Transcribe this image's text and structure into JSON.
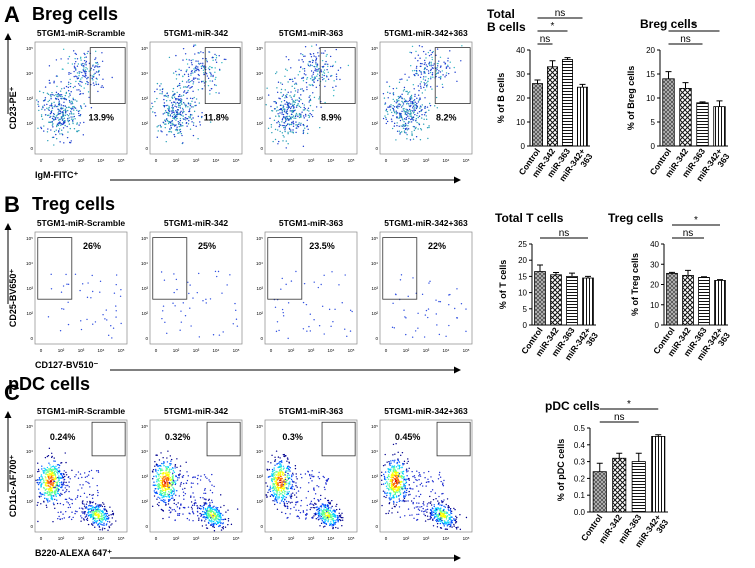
{
  "panels": [
    {
      "letter": "A",
      "title": "Breg cells",
      "samples": [
        "5TGM1-miR-Scramble",
        "5TGM1-miR-342",
        "5TGM1-miR-363",
        "5TGM1-miR-342+363"
      ],
      "gate_percents": [
        "13.9%",
        "11.8%",
        "8.9%",
        "8.2%"
      ],
      "y_label": "CD23-PE⁺",
      "x_label": "IgM-FITC⁺"
    },
    {
      "letter": "B",
      "title": "Treg cells",
      "samples": [
        "5TGM1-miR-Scramble",
        "5TGM1-miR-342",
        "5TGM1-miR-363",
        "5TGM1-miR-342+363"
      ],
      "gate_percents": [
        "26%",
        "25%",
        "23.5%",
        "22%"
      ],
      "y_label": "CD25-BV650⁺",
      "x_label": "CD127-BV510⁻"
    },
    {
      "letter": "C",
      "title": "pDC cells",
      "samples": [
        "5TGM1-miR-Scramble",
        "5TGM1-miR-342",
        "5TGM1-miR-363",
        "5TGM1-miR-342+363"
      ],
      "gate_percents": [
        "0.24%",
        "0.32%",
        "0.3%",
        "0.45%"
      ],
      "y_label": "CD11c-AF700⁺",
      "x_label": "B220-ALEXA 647⁺"
    }
  ],
  "flow_axis_ticks": [
    "0",
    "10²",
    "10³",
    "10⁴",
    "10⁵"
  ],
  "chart_data": [
    {
      "type": "bar",
      "title": "Total\nB cells",
      "y_label": "% of B cells",
      "categories": [
        "Control",
        "miR-342",
        "miR-363",
        "miR-342+\n363"
      ],
      "values": [
        26,
        33,
        36,
        24.5
      ],
      "errors": [
        1.5,
        2.5,
        0.8,
        1.2
      ],
      "ylim": [
        0,
        40
      ],
      "yticks": [
        0,
        10,
        20,
        30,
        40
      ],
      "comparisons": [
        {
          "from": 0,
          "to": 1,
          "label": "ns"
        },
        {
          "from": 0,
          "to": 2,
          "label": "*"
        },
        {
          "from": 0,
          "to": 3,
          "label": "ns"
        }
      ]
    },
    {
      "type": "bar",
      "title": "Breg cells",
      "y_label": "% of Breg cells",
      "categories": [
        "Control",
        "miR-342",
        "miR-363",
        "miR-342+\n363"
      ],
      "values": [
        14,
        12,
        9,
        8.2
      ],
      "errors": [
        1.5,
        1.2,
        0.2,
        1.2
      ],
      "ylim": [
        0,
        20
      ],
      "yticks": [
        0,
        5,
        10,
        15,
        20
      ],
      "comparisons": [
        {
          "from": 0,
          "to": 2,
          "label": "ns"
        },
        {
          "from": 0,
          "to": 3,
          "label": "*"
        }
      ]
    },
    {
      "type": "bar",
      "title": "Total T cells",
      "y_label": "% of T cells",
      "categories": [
        "Control",
        "miR-342",
        "miR-363",
        "miR-342+\n363"
      ],
      "values": [
        16.5,
        15.5,
        15,
        14.5
      ],
      "errors": [
        2,
        0.7,
        1,
        0.5
      ],
      "ylim": [
        0,
        25
      ],
      "yticks": [
        0,
        5,
        10,
        15,
        20,
        25
      ],
      "comparisons": [
        {
          "from": 0,
          "to": 3,
          "label": "ns"
        }
      ]
    },
    {
      "type": "bar",
      "title": "Treg cells",
      "y_label": "% of Treg cells",
      "categories": [
        "Control",
        "miR-342",
        "miR-363",
        "miR-342+\n363"
      ],
      "values": [
        25.5,
        24.5,
        23.5,
        22
      ],
      "errors": [
        0.5,
        2.5,
        0.3,
        0.4
      ],
      "ylim": [
        0,
        40
      ],
      "yticks": [
        0,
        10,
        20,
        30,
        40
      ],
      "comparisons": [
        {
          "from": 0,
          "to": 2,
          "label": "ns"
        },
        {
          "from": 0,
          "to": 3,
          "label": "*"
        }
      ]
    },
    {
      "type": "bar",
      "title": "pDC cells",
      "y_label": "% of pDC cells",
      "categories": [
        "Control",
        "miR-342",
        "miR-363",
        "miR-342+\n363"
      ],
      "values": [
        0.24,
        0.32,
        0.3,
        0.45
      ],
      "errors": [
        0.05,
        0.03,
        0.05,
        0.01
      ],
      "ylim": [
        0,
        0.5
      ],
      "yticks": [
        {
          "value": 0,
          "label": "0.0"
        },
        0.1,
        0.2,
        0.3,
        0.4,
        0.5
      ],
      "comparisons": [
        {
          "from": 0,
          "to": 2,
          "label": "ns"
        },
        {
          "from": 0,
          "to": 3,
          "label": "*"
        }
      ]
    }
  ]
}
